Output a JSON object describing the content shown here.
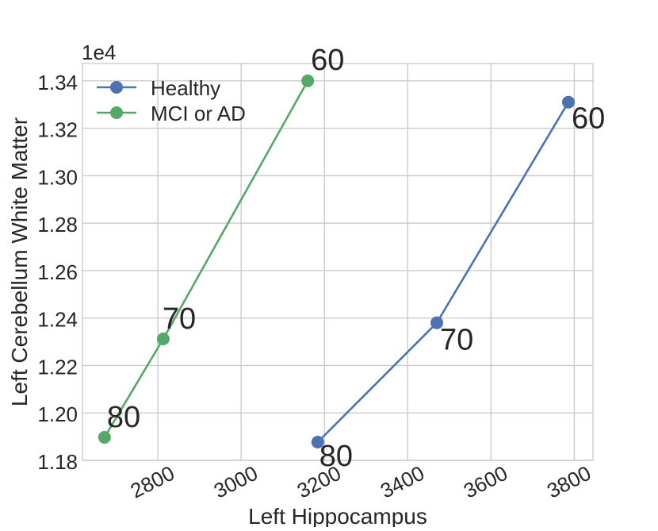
{
  "figure": {
    "background": "#ffffff",
    "text_color": "#262626",
    "grid_color": "#cccccc"
  },
  "chart_data": {
    "type": "line",
    "title": "",
    "xlabel": "Left Hippocampus",
    "ylabel": "Left Cerebellum White Matter",
    "y_offset_label": "1e4",
    "xlim": [
      2619,
      3845
    ],
    "ylim": [
      11800,
      13473
    ],
    "xticks": [
      2800,
      3000,
      3200,
      3400,
      3600,
      3800
    ],
    "xtick_labels": [
      "2800",
      "3000",
      "3200",
      "3400",
      "3600",
      "3800"
    ],
    "xtick_rotation": 27,
    "yticks": [
      11800,
      12000,
      12200,
      12400,
      12600,
      12800,
      13000,
      13200,
      13400
    ],
    "ytick_labels": [
      "1.18",
      "1.20",
      "1.22",
      "1.24",
      "1.26",
      "1.28",
      "1.30",
      "1.32",
      "1.34"
    ],
    "grid": true,
    "legend": {
      "position": "upper left",
      "frame": false,
      "entries": [
        "Healthy",
        "MCI or AD"
      ]
    },
    "series": [
      {
        "name": "Healthy",
        "color": "#4C72B0",
        "marker": "circle",
        "points": [
          {
            "x": 3184,
            "y": 11877,
            "label": "80",
            "label_dx": 2,
            "label_dy": 30
          },
          {
            "x": 3470,
            "y": 12380,
            "label": "70",
            "label_dx": 4,
            "label_dy": 34
          },
          {
            "x": 3786,
            "y": 13310,
            "label": "60",
            "label_dx": 4,
            "label_dy": 33
          }
        ]
      },
      {
        "name": "MCI or AD",
        "color": "#55A868",
        "marker": "circle",
        "points": [
          {
            "x": 2672,
            "y": 11897,
            "label": "80",
            "label_dx": 3,
            "label_dy": -13
          },
          {
            "x": 2813,
            "y": 12312,
            "label": "70",
            "label_dx": -1,
            "label_dy": -13
          },
          {
            "x": 3160,
            "y": 13400,
            "label": "60",
            "label_dx": 4,
            "label_dy": -14
          }
        ]
      }
    ]
  }
}
